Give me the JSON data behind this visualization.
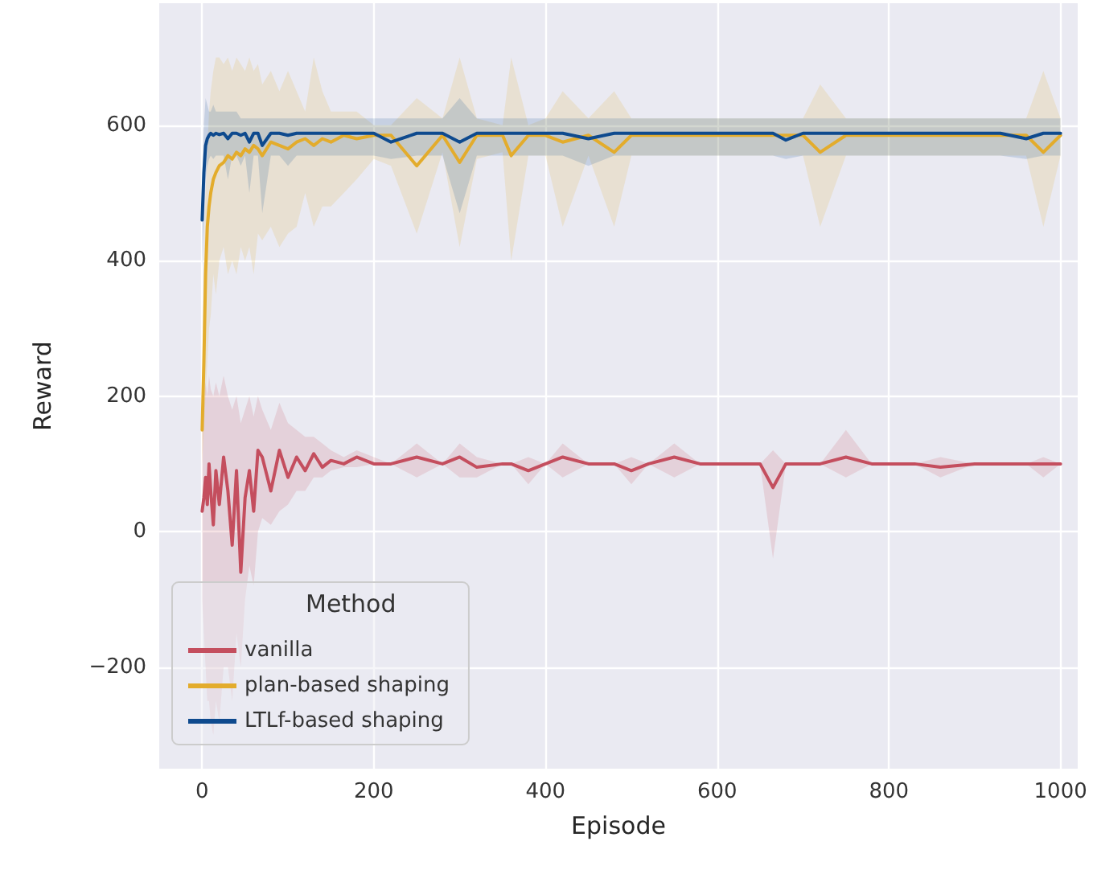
{
  "chart_data": {
    "type": "line",
    "xlabel": "Episode",
    "ylabel": "Reward",
    "legend_title": "Method",
    "legend": "bottom left",
    "grid": true,
    "marker": "none",
    "line_style": "solid",
    "xlim": [
      -50,
      1020
    ],
    "ylim": [
      -350,
      780
    ],
    "xticks": [
      0,
      200,
      400,
      600,
      800,
      1000
    ],
    "yticks": [
      {
        "value": -200,
        "label": "−200"
      },
      0,
      200,
      400,
      600
    ],
    "x": [
      0,
      2,
      4,
      6,
      8,
      10,
      13,
      16,
      20,
      25,
      30,
      35,
      40,
      45,
      50,
      55,
      60,
      65,
      70,
      80,
      90,
      100,
      110,
      120,
      130,
      140,
      150,
      165,
      180,
      200,
      220,
      250,
      280,
      300,
      320,
      350,
      360,
      380,
      400,
      420,
      450,
      480,
      500,
      520,
      550,
      580,
      600,
      620,
      650,
      665,
      680,
      700,
      720,
      750,
      780,
      800,
      830,
      860,
      900,
      930,
      960,
      980,
      1000
    ],
    "series": [
      {
        "name": "vanilla",
        "color": "#c44e5e",
        "values": [
          30,
          50,
          80,
          40,
          100,
          60,
          10,
          90,
          40,
          110,
          60,
          -20,
          90,
          -60,
          50,
          90,
          30,
          120,
          110,
          60,
          120,
          80,
          110,
          90,
          115,
          95,
          105,
          100,
          110,
          100,
          100,
          110,
          100,
          110,
          95,
          100,
          100,
          90,
          100,
          110,
          100,
          100,
          90,
          100,
          110,
          100,
          100,
          100,
          100,
          65,
          100,
          100,
          100,
          110,
          100,
          100,
          100,
          95,
          100,
          100,
          100,
          100,
          100
        ],
        "lower": [
          -100,
          -150,
          -200,
          -250,
          -250,
          -280,
          -300,
          -250,
          -280,
          -200,
          -200,
          -250,
          -150,
          -200,
          -100,
          -50,
          -80,
          0,
          20,
          10,
          30,
          40,
          60,
          60,
          80,
          80,
          90,
          95,
          95,
          100,
          100,
          80,
          100,
          80,
          80,
          100,
          100,
          70,
          100,
          80,
          100,
          100,
          70,
          100,
          80,
          100,
          100,
          100,
          100,
          -40,
          100,
          100,
          100,
          80,
          100,
          100,
          100,
          80,
          100,
          100,
          100,
          80,
          100
        ],
        "upper": [
          200,
          180,
          220,
          200,
          230,
          210,
          200,
          220,
          200,
          230,
          200,
          180,
          200,
          160,
          180,
          200,
          170,
          200,
          180,
          150,
          190,
          160,
          150,
          140,
          140,
          130,
          120,
          110,
          120,
          110,
          100,
          130,
          100,
          130,
          110,
          100,
          100,
          110,
          100,
          130,
          100,
          100,
          110,
          100,
          130,
          100,
          100,
          100,
          100,
          120,
          100,
          100,
          100,
          150,
          100,
          100,
          100,
          110,
          100,
          100,
          100,
          110,
          100
        ]
      },
      {
        "name": "plan-based shaping",
        "color": "#e3ac2c",
        "values": [
          150,
          250,
          380,
          450,
          480,
          500,
          520,
          530,
          540,
          545,
          555,
          550,
          560,
          555,
          565,
          560,
          570,
          565,
          555,
          575,
          570,
          565,
          575,
          580,
          570,
          580,
          575,
          585,
          580,
          585,
          585,
          540,
          585,
          545,
          585,
          585,
          555,
          585,
          585,
          575,
          585,
          560,
          585,
          585,
          585,
          585,
          585,
          585,
          585,
          585,
          585,
          585,
          560,
          585,
          585,
          585,
          585,
          585,
          585,
          585,
          585,
          560,
          585
        ],
        "lower": [
          100,
          150,
          200,
          250,
          300,
          320,
          380,
          350,
          400,
          420,
          380,
          400,
          380,
          420,
          400,
          420,
          380,
          440,
          430,
          450,
          420,
          440,
          450,
          500,
          450,
          480,
          480,
          500,
          520,
          550,
          540,
          440,
          560,
          420,
          550,
          560,
          400,
          555,
          555,
          450,
          555,
          450,
          555,
          555,
          555,
          555,
          555,
          555,
          555,
          555,
          555,
          555,
          450,
          555,
          555,
          555,
          555,
          555,
          555,
          555,
          555,
          450,
          555
        ],
        "upper": [
          250,
          400,
          500,
          560,
          620,
          650,
          680,
          700,
          700,
          690,
          700,
          680,
          700,
          690,
          680,
          700,
          680,
          690,
          660,
          680,
          650,
          680,
          650,
          620,
          700,
          650,
          620,
          620,
          620,
          600,
          600,
          640,
          610,
          700,
          610,
          600,
          700,
          600,
          610,
          650,
          610,
          650,
          610,
          610,
          610,
          610,
          610,
          610,
          610,
          610,
          610,
          610,
          660,
          610,
          610,
          610,
          610,
          610,
          610,
          610,
          610,
          680,
          610
        ]
      },
      {
        "name": "LTLf-based shaping",
        "color": "#0e4a8e",
        "values": [
          460,
          530,
          570,
          580,
          585,
          588,
          585,
          588,
          586,
          588,
          580,
          588,
          588,
          585,
          588,
          575,
          588,
          588,
          570,
          588,
          588,
          585,
          588,
          588,
          588,
          588,
          588,
          588,
          588,
          588,
          575,
          588,
          588,
          575,
          588,
          588,
          588,
          588,
          588,
          588,
          580,
          588,
          588,
          588,
          588,
          588,
          588,
          588,
          588,
          588,
          578,
          588,
          588,
          588,
          588,
          588,
          588,
          588,
          588,
          588,
          580,
          588,
          588
        ],
        "lower": [
          390,
          450,
          520,
          540,
          550,
          555,
          550,
          555,
          555,
          555,
          520,
          555,
          555,
          540,
          555,
          500,
          555,
          555,
          470,
          555,
          555,
          540,
          555,
          555,
          555,
          555,
          555,
          555,
          555,
          555,
          550,
          555,
          555,
          470,
          555,
          555,
          555,
          555,
          555,
          555,
          540,
          555,
          555,
          555,
          555,
          555,
          555,
          555,
          555,
          555,
          550,
          555,
          555,
          555,
          555,
          555,
          555,
          555,
          555,
          555,
          550,
          555,
          555
        ],
        "upper": [
          520,
          600,
          640,
          630,
          620,
          620,
          630,
          620,
          620,
          620,
          620,
          620,
          620,
          610,
          610,
          610,
          610,
          610,
          610,
          610,
          610,
          610,
          610,
          610,
          610,
          610,
          610,
          610,
          610,
          610,
          610,
          610,
          610,
          640,
          610,
          610,
          610,
          610,
          610,
          610,
          610,
          610,
          610,
          610,
          610,
          610,
          610,
          610,
          610,
          610,
          610,
          610,
          610,
          610,
          610,
          610,
          610,
          610,
          610,
          610,
          610,
          610,
          610
        ]
      }
    ]
  }
}
